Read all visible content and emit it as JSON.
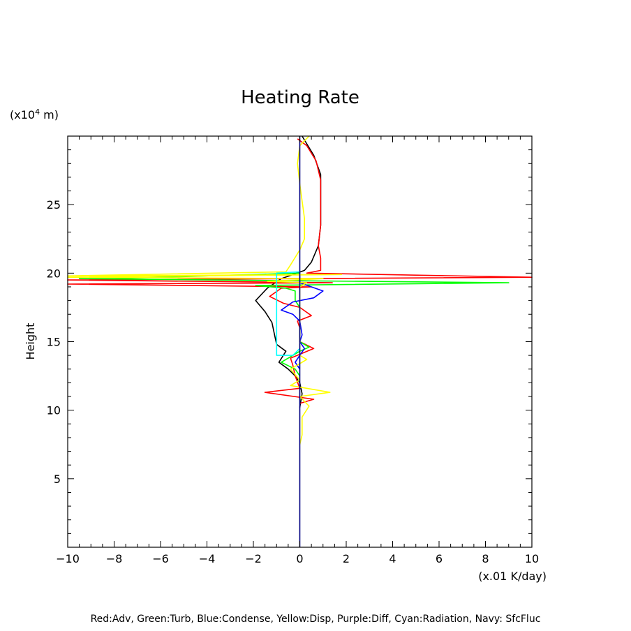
{
  "chart_data": {
    "type": "line",
    "title": "Heating Rate",
    "xlabel": "(x.01 K/day)",
    "ylabel": "Height",
    "yunit_prefix": "(x10",
    "yunit_exp": "4",
    "yunit_suffix": " m)",
    "xlim": [
      -10,
      10
    ],
    "ylim": [
      0,
      30
    ],
    "xticks": [
      -10,
      -8,
      -6,
      -4,
      -2,
      0,
      2,
      4,
      6,
      8,
      10
    ],
    "xtick_labels": [
      "−10",
      "−8",
      "−6",
      "−4",
      "−2",
      "0",
      "2",
      "4",
      "6",
      "8",
      "10"
    ],
    "yticks": [
      5,
      10,
      15,
      20,
      25
    ],
    "ytick_labels": [
      "5",
      "10",
      "15",
      "20",
      "25"
    ],
    "grid": false,
    "footer": "Red:Adv, Green:Turb, Blue:Condense, Yellow:Disp, Purple:Diff, Cyan:Radiation, Navy: SfcFluc",
    "series": [
      {
        "color": "#000000",
        "points": [
          [
            0.1,
            30
          ],
          [
            0.6,
            28.6
          ],
          [
            0.9,
            27.2
          ],
          [
            0.9,
            25
          ],
          [
            0.9,
            23.5
          ],
          [
            0.8,
            22
          ],
          [
            0.5,
            20.8
          ],
          [
            0.2,
            20.2
          ],
          [
            -0.8,
            19.6
          ],
          [
            -1.4,
            18.9
          ],
          [
            -1.9,
            18.0
          ],
          [
            -1.5,
            17.2
          ],
          [
            -1.2,
            16.4
          ],
          [
            -1.1,
            15.6
          ],
          [
            -1.0,
            14.8
          ],
          [
            -0.6,
            14.3
          ],
          [
            -0.9,
            13.5
          ],
          [
            -0.5,
            13.0
          ],
          [
            -0.2,
            12.5
          ],
          [
            0.0,
            12.0
          ],
          [
            0.1,
            11.2
          ],
          [
            0.0,
            10.2
          ]
        ]
      },
      {
        "color": "#ff0000",
        "points": [
          [
            -0.1,
            29.8
          ],
          [
            0.3,
            29.3
          ],
          [
            0.7,
            28.2
          ],
          [
            0.9,
            26.8
          ],
          [
            0.9,
            25
          ],
          [
            0.9,
            23.5
          ],
          [
            0.8,
            22
          ],
          [
            0.9,
            21.1
          ],
          [
            0.9,
            20.2
          ],
          [
            0.3,
            20.0
          ],
          [
            10.0,
            19.7
          ],
          [
            -10.0,
            19.5
          ],
          [
            1.4,
            19.3
          ],
          [
            -10.0,
            19.2
          ],
          [
            0.5,
            19.0
          ],
          [
            -0.8,
            18.9
          ],
          [
            -1.3,
            18.3
          ],
          [
            -0.7,
            17.8
          ],
          [
            0.0,
            17.5
          ],
          [
            0.5,
            16.9
          ],
          [
            -0.1,
            16.5
          ],
          [
            0.0,
            16.0
          ],
          [
            0.0,
            15.0
          ],
          [
            0.6,
            14.5
          ],
          [
            -0.4,
            13.8
          ],
          [
            -0.3,
            13.3
          ],
          [
            -0.2,
            12.5
          ],
          [
            0.0,
            11.6
          ],
          [
            -1.5,
            11.3
          ],
          [
            0.6,
            10.8
          ],
          [
            0.0,
            10.5
          ]
        ]
      },
      {
        "color": "#00ff00",
        "points": [
          [
            0.0,
            20.0
          ],
          [
            -8.0,
            19.6
          ],
          [
            -9.5,
            19.6
          ],
          [
            9.0,
            19.3
          ],
          [
            -1.9,
            19.1
          ],
          [
            -0.6,
            18.9
          ],
          [
            -0.2,
            18.7
          ],
          [
            -0.2,
            18.0
          ],
          [
            0.0,
            17.5
          ],
          [
            0.0,
            16.0
          ],
          [
            0.0,
            15.0
          ],
          [
            0.4,
            14.6
          ],
          [
            0.0,
            14.3
          ],
          [
            -0.8,
            13.5
          ],
          [
            -0.2,
            13.0
          ],
          [
            0.0,
            12.5
          ]
        ]
      },
      {
        "color": "#0000ff",
        "points": [
          [
            0.0,
            20.0
          ],
          [
            0.0,
            19.3
          ],
          [
            1.0,
            18.7
          ],
          [
            0.6,
            18.2
          ],
          [
            -0.3,
            17.9
          ],
          [
            -0.8,
            17.3
          ],
          [
            -0.3,
            17.0
          ],
          [
            0.0,
            16.5
          ],
          [
            0.1,
            15.5
          ],
          [
            0.0,
            15.0
          ],
          [
            0.2,
            14.5
          ],
          [
            0.0,
            14.0
          ],
          [
            -0.2,
            13.5
          ],
          [
            0.0,
            13.0
          ]
        ]
      },
      {
        "color": "#ffff00",
        "points": [
          [
            0.4,
            30
          ],
          [
            0.0,
            29.3
          ],
          [
            -0.1,
            28.0
          ],
          [
            0.0,
            26.5
          ],
          [
            0.2,
            24.0
          ],
          [
            0.2,
            22.5
          ],
          [
            0.0,
            21.7
          ],
          [
            -0.4,
            20.6
          ],
          [
            -0.6,
            20.1
          ],
          [
            -10.0,
            19.8
          ],
          [
            1.8,
            19.9
          ],
          [
            -10.0,
            19.7
          ],
          [
            1.0,
            19.6
          ],
          [
            -1.4,
            19.4
          ],
          [
            0.3,
            19.3
          ],
          [
            0.0,
            19.0
          ],
          [
            0.0,
            17.0
          ],
          [
            0.0,
            15.0
          ],
          [
            0.0,
            14.0
          ],
          [
            0.3,
            13.7
          ],
          [
            -0.4,
            13.0
          ],
          [
            0.0,
            12.2
          ],
          [
            -0.4,
            11.8
          ],
          [
            1.3,
            11.3
          ],
          [
            0.0,
            11.0
          ],
          [
            0.4,
            10.3
          ],
          [
            0.1,
            9.5
          ],
          [
            0.1,
            8.2
          ],
          [
            0.0,
            7.5
          ]
        ]
      },
      {
        "color": "#00ffff",
        "points": [
          [
            0.0,
            20.1
          ],
          [
            -1.0,
            20.0
          ],
          [
            -1.0,
            14.0
          ],
          [
            -0.3,
            14.0
          ],
          [
            0.0,
            14.5
          ]
        ]
      },
      {
        "color": "#000080",
        "points": [
          [
            0.0,
            30
          ],
          [
            0.0,
            0
          ]
        ]
      }
    ]
  }
}
